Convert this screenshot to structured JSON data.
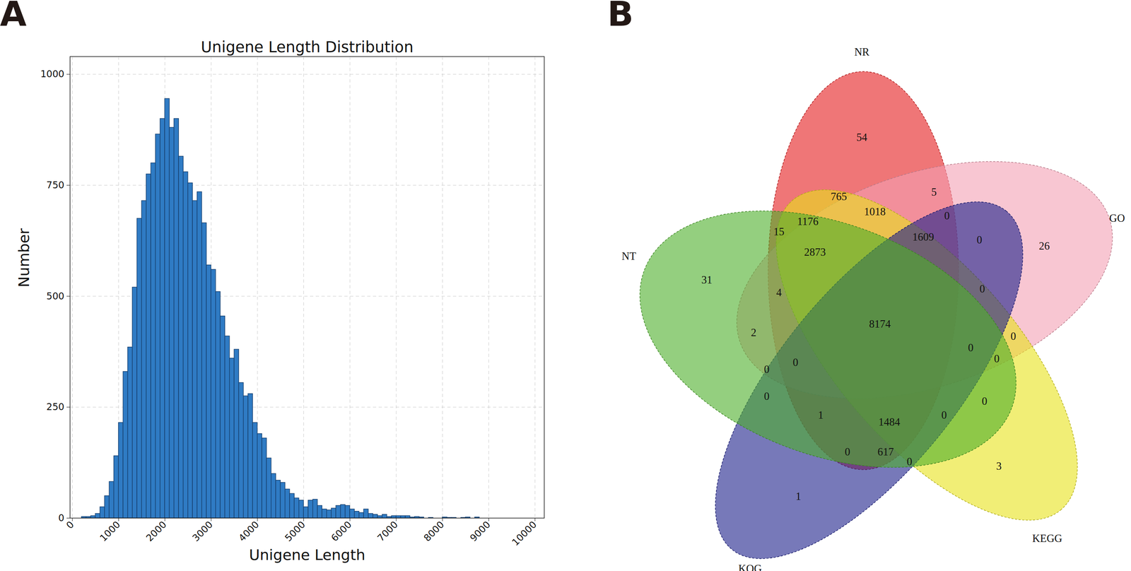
{
  "chart_data": [
    {
      "type": "histogram",
      "panel_label": "A",
      "title": "Unigene Length Distribution",
      "x_label": "Unigene Length",
      "y_label": "Number",
      "color": "#2f7bc4",
      "bins": [
        200,
        300,
        400,
        500,
        600,
        700,
        800,
        900,
        1000,
        1100,
        1200,
        1300,
        1400,
        1500,
        1600,
        1700,
        1800,
        1900,
        2000,
        2100,
        2200,
        2300,
        2400,
        2500,
        2600,
        2700,
        2800,
        2900,
        3000,
        3100,
        3200,
        3300,
        3400,
        3500,
        3600,
        3700,
        3800,
        3900,
        4000,
        4100,
        4200,
        4300,
        4400,
        4500,
        4600,
        4700,
        4800,
        4900,
        5000,
        5100,
        5200,
        5300,
        5400,
        5500,
        5600,
        5700,
        5800,
        5900,
        6000,
        6100,
        6200,
        6300,
        6400,
        6500,
        6600,
        6700,
        6800,
        6900,
        7000,
        7100,
        7200,
        7300,
        7400,
        7500,
        7600,
        7700,
        7800,
        7900,
        8000,
        8100,
        8200,
        8300,
        8400,
        8500,
        8600,
        8700,
        8800
      ],
      "values": [
        3,
        3,
        5,
        10,
        25,
        50,
        82,
        140,
        215,
        330,
        385,
        520,
        675,
        715,
        775,
        800,
        865,
        900,
        945,
        880,
        900,
        815,
        780,
        755,
        715,
        735,
        665,
        570,
        560,
        510,
        455,
        410,
        360,
        380,
        305,
        275,
        280,
        215,
        190,
        180,
        135,
        100,
        85,
        80,
        65,
        55,
        45,
        40,
        25,
        40,
        42,
        28,
        20,
        18,
        22,
        28,
        30,
        28,
        20,
        15,
        12,
        20,
        10,
        8,
        5,
        8,
        3,
        5,
        5,
        5,
        5,
        2,
        3,
        2,
        0,
        1,
        0,
        0,
        2,
        1,
        1,
        0,
        1,
        2,
        0,
        2
      ],
      "xlim": [
        -50,
        10200
      ],
      "ylim": [
        0,
        1040
      ],
      "xticks": [
        0,
        1000,
        2000,
        3000,
        4000,
        5000,
        6000,
        7000,
        8000,
        9000,
        10000
      ],
      "yticks": [
        0,
        250,
        500,
        750,
        1000
      ],
      "grid": true
    },
    {
      "type": "venn",
      "panel_label": "B",
      "sets": [
        {
          "name": "NR",
          "color": "#e41a1c"
        },
        {
          "name": "GO",
          "color": "#f4a0b4"
        },
        {
          "name": "KEGG",
          "color": "#e8e21a"
        },
        {
          "name": "KOG",
          "color": "#1c1f8a"
        },
        {
          "name": "NT",
          "color": "#4daf2a"
        }
      ],
      "regions": [
        {
          "sets": [
            "NR"
          ],
          "value": 54
        },
        {
          "sets": [
            "GO"
          ],
          "value": 26
        },
        {
          "sets": [
            "KEGG"
          ],
          "value": 3
        },
        {
          "sets": [
            "KOG"
          ],
          "value": 1
        },
        {
          "sets": [
            "NT"
          ],
          "value": 31
        },
        {
          "sets": [
            "NR",
            "GO"
          ],
          "value": 5
        },
        {
          "sets": [
            "NR",
            "KEGG"
          ],
          "value": 765
        },
        {
          "sets": [
            "NR",
            "KOG"
          ],
          "value": 0
        },
        {
          "sets": [
            "NR",
            "NT"
          ],
          "value": 15
        },
        {
          "sets": [
            "GO",
            "KEGG"
          ],
          "value": 0
        },
        {
          "sets": [
            "GO",
            "KOG"
          ],
          "value": 0
        },
        {
          "sets": [
            "GO",
            "NT"
          ],
          "value": 2
        },
        {
          "sets": [
            "KEGG",
            "KOG"
          ],
          "value": 0
        },
        {
          "sets": [
            "KEGG",
            "NT"
          ],
          "value": 0
        },
        {
          "sets": [
            "KOG",
            "NT"
          ],
          "value": 0
        },
        {
          "sets": [
            "NR",
            "GO",
            "KEGG"
          ],
          "value": 1018
        },
        {
          "sets": [
            "NR",
            "GO",
            "KOG"
          ],
          "value": 0
        },
        {
          "sets": [
            "NR",
            "GO",
            "NT"
          ],
          "value": 0
        },
        {
          "sets": [
            "NR",
            "KEGG",
            "KOG"
          ],
          "value": 617
        },
        {
          "sets": [
            "NR",
            "KEGG",
            "NT"
          ],
          "value": 1176
        },
        {
          "sets": [
            "NR",
            "KOG",
            "NT"
          ],
          "value": 1
        },
        {
          "sets": [
            "GO",
            "KEGG",
            "KOG"
          ],
          "value": 0
        },
        {
          "sets": [
            "GO",
            "KEGG",
            "NT"
          ],
          "value": 4
        },
        {
          "sets": [
            "GO",
            "KOG",
            "NT"
          ],
          "value": 0
        },
        {
          "sets": [
            "KEGG",
            "KOG",
            "NT"
          ],
          "value": 0
        },
        {
          "sets": [
            "NR",
            "GO",
            "KEGG",
            "KOG"
          ],
          "value": 1609
        },
        {
          "sets": [
            "NR",
            "GO",
            "KEGG",
            "NT"
          ],
          "value": 2873
        },
        {
          "sets": [
            "NR",
            "GO",
            "KOG",
            "NT"
          ],
          "value": 0
        },
        {
          "sets": [
            "NR",
            "KEGG",
            "KOG",
            "NT"
          ],
          "value": 1484
        },
        {
          "sets": [
            "GO",
            "KEGG",
            "KOG",
            "NT"
          ],
          "value": 0
        },
        {
          "sets": [
            "NR",
            "GO",
            "KEGG",
            "KOG",
            "NT"
          ],
          "value": 8174
        }
      ]
    }
  ]
}
